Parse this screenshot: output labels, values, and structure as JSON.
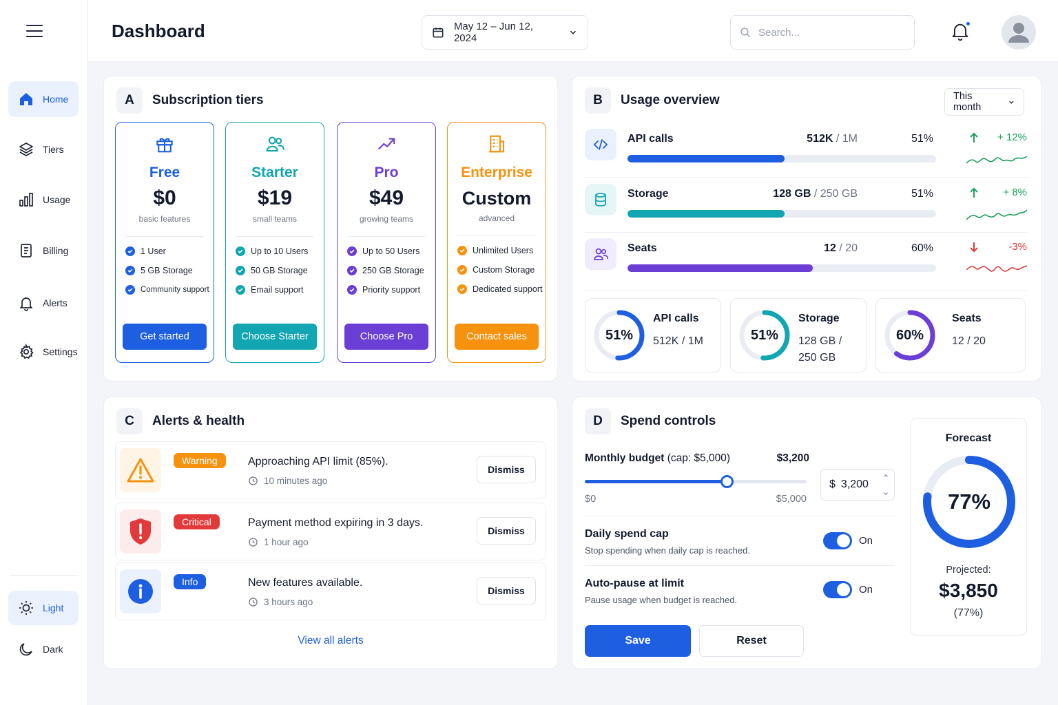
{
  "header": {
    "title": "Dashboard",
    "date_range": "May 12 – Jun 12, 2024",
    "search_placeholder": "Search...",
    "notification_dot_color": "#1d5fe0"
  },
  "sidebar": {
    "items": [
      {
        "label": "Home",
        "icon": "home-icon",
        "active": true
      },
      {
        "label": "Tiers",
        "icon": "layers-icon"
      },
      {
        "label": "Usage",
        "icon": "bar-chart-icon"
      },
      {
        "label": "Billing",
        "icon": "receipt-icon"
      },
      {
        "label": "Alerts",
        "icon": "bell-icon"
      },
      {
        "label": "Settings",
        "icon": "gear-icon"
      }
    ],
    "theme": [
      {
        "label": "Light",
        "icon": "sun-icon",
        "active": true
      },
      {
        "label": "Dark",
        "icon": "moon-icon"
      }
    ]
  },
  "tiers": {
    "letter": "A",
    "title": "Subscription tiers",
    "items": [
      {
        "name": "Free",
        "price": "$0",
        "sub": "basic features",
        "features": [
          "1 User",
          "5 GB Storage",
          "Community support"
        ],
        "button": "Get started",
        "color": "#1d5fe0",
        "icon": "gift-icon"
      },
      {
        "name": "Starter",
        "price": "$19",
        "sub": "small teams",
        "features": [
          "Up to 10 Users",
          "50 GB Storage",
          "Email support"
        ],
        "button": "Choose Starter",
        "color": "#12a5b2",
        "icon": "users-icon"
      },
      {
        "name": "Pro",
        "price": "$49",
        "sub": "growing teams",
        "features": [
          "Up to 50 Users",
          "250 GB Storage",
          "Priority support"
        ],
        "button": "Choose Pro",
        "color": "#6b3fd6",
        "icon": "trending-up-icon"
      },
      {
        "name": "Enterprise",
        "price": "Custom",
        "sub": "advanced",
        "features": [
          "Unlimited Users",
          "Custom Storage",
          "Dedicated support"
        ],
        "button": "Contact sales",
        "color": "#f7920f",
        "icon": "building-icon"
      }
    ]
  },
  "usage": {
    "letter": "B",
    "title": "Usage overview",
    "period": "This month",
    "rows": [
      {
        "label": "API calls",
        "value": "512K",
        "limit": "/ 1M",
        "pct_text": "51%",
        "pct": 51,
        "trend": "+ 12%",
        "trend_dir": "up",
        "color": "#1d5fe0",
        "icon": "code-icon"
      },
      {
        "label": "Storage",
        "value": "128 GB",
        "limit": "/ 250 GB",
        "pct_text": "51%",
        "pct": 51,
        "trend": "+ 8%",
        "trend_dir": "up",
        "color": "#12a5b2",
        "icon": "database-icon"
      },
      {
        "label": "Seats",
        "value": "12",
        "limit": "/ 20",
        "pct_text": "60%",
        "pct": 60,
        "trend": "-3%",
        "trend_dir": "down",
        "color": "#6b3fd6",
        "icon": "users-icon"
      }
    ],
    "cards": [
      {
        "pct_text": "51%",
        "pct": 51,
        "label": "API calls",
        "value": "512K / 1M",
        "color": "#1d5fe0"
      },
      {
        "pct_text": "51%",
        "pct": 51,
        "label": "Storage",
        "value": "128 GB / 250 GB",
        "color": "#12a5b2"
      },
      {
        "pct_text": "60%",
        "pct": 60,
        "label": "Seats",
        "value": "12 / 20",
        "color": "#6b3fd6"
      }
    ],
    "up_color": "#1ba05a",
    "down_color": "#e23a3a"
  },
  "alerts": {
    "letter": "C",
    "title": "Alerts & health",
    "items": [
      {
        "badge": "Warning",
        "message": "Approaching API limit (85%).",
        "time": "10 minutes ago",
        "color": "#f7920f",
        "icon": "warning-triangle-icon"
      },
      {
        "badge": "Critical",
        "message": "Payment method expiring in 3 days.",
        "time": "1 hour ago",
        "color": "#e23a3a",
        "icon": "shield-alert-icon"
      },
      {
        "badge": "Info",
        "message": "New features available.",
        "time": "3 hours ago",
        "color": "#1d5fe0",
        "icon": "info-icon"
      }
    ],
    "dismiss_label": "Dismiss",
    "view_all": "View all alerts"
  },
  "spend": {
    "letter": "D",
    "title": "Spend controls",
    "budget_label": "Monthly budget",
    "budget_cap": "(cap: $5,000)",
    "budget_value": "$3,200",
    "slider_min": "$0",
    "slider_max": "$5,000",
    "slider_fraction": 0.64,
    "currency": "$",
    "input_value": "3,200",
    "daily_cap_title": "Daily spend cap",
    "daily_cap_sub": "Stop spending when daily cap is reached.",
    "daily_cap_state": "On",
    "autopause_title": "Auto-pause at limit",
    "autopause_sub": "Pause usage when budget is reached.",
    "autopause_state": "On",
    "save": "Save",
    "reset": "Reset",
    "forecast": {
      "title": "Forecast",
      "pct_text": "77%",
      "pct": 77,
      "projected_label": "Projected:",
      "projected": "$3,850",
      "projected_pct": "(77%)"
    }
  }
}
